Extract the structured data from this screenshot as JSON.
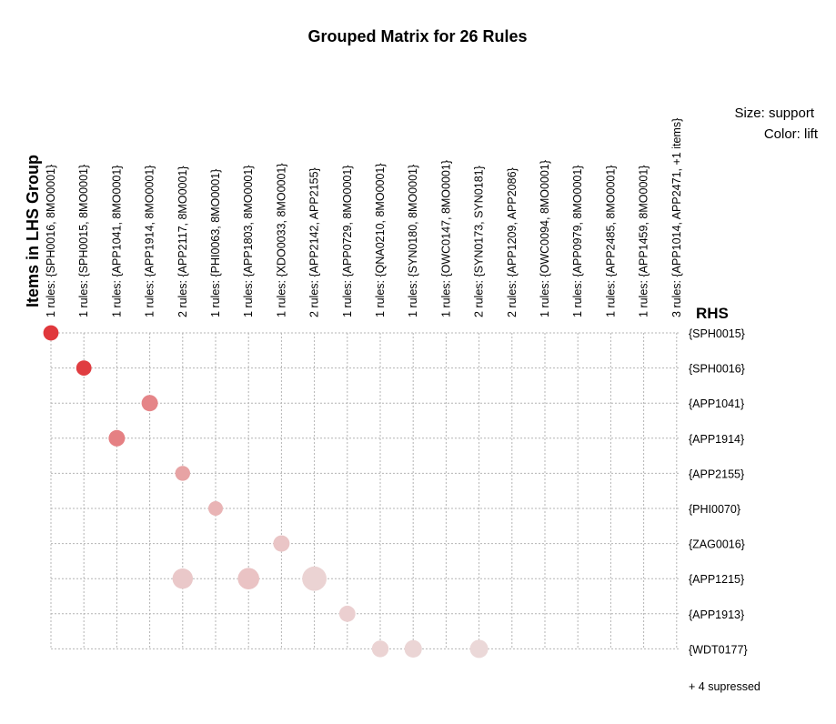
{
  "chart_data": {
    "type": "scatter",
    "title": "Grouped Matrix for 26 Rules",
    "legend": {
      "size_label": "Size: support",
      "color_label": "Color: lift",
      "placement": "top-right"
    },
    "x_axis_title": "Items in LHS Group",
    "y_axis_title": "RHS",
    "lhs_groups": [
      "1 rules: {SPH0016, 8MO0001}",
      "1 rules: {SPH0015, 8MO0001}",
      "1 rules: {APP1041, 8MO0001}",
      "1 rules: {APP1914, 8MO0001}",
      "2 rules: {APP2117, 8MO0001}",
      "1 rules: {PHI0063, 8MO0001}",
      "1 rules: {APP1803, 8MO0001}",
      "1 rules: {XDO0033, 8MO0001}",
      "2 rules: {APP2142, APP2155}",
      "1 rules: {APP0729, 8MO0001}",
      "1 rules: {QNA0210, 8MO0001}",
      "1 rules: {SYN0180, 8MO0001}",
      "1 rules: {OWC0147, 8MO0001}",
      "2 rules: {SYN0173, SYN0181}",
      "2 rules: {APP1209, APP2086}",
      "1 rules: {OWC0094, 8MO0001}",
      "1 rules: {APP0979, 8MO0001}",
      "1 rules: {APP2485, 8MO0001}",
      "1 rules: {APP1459, 8MO0001}",
      "3 rules: {APP1014, APP2471, +1 items}"
    ],
    "rhs_items": [
      "{SPH0015}",
      "{SPH0016}",
      "{APP1041}",
      "{APP1914}",
      "{APP2155}",
      "{PHI0070}",
      "{ZAG0016}",
      "{APP1215}",
      "{APP1913}",
      "{WDT0177}"
    ],
    "footer_note": "+ 4 supressed",
    "grid": true,
    "colors": {
      "high_lift": "#e0383c",
      "low_lift": "#ece4e4",
      "grid": "#b4b4b4"
    },
    "points": [
      {
        "lhs": 0,
        "rhs": 0,
        "support": 0.3,
        "lift": 1.0
      },
      {
        "lhs": 1,
        "rhs": 1,
        "support": 0.3,
        "lift": 0.97
      },
      {
        "lhs": 3,
        "rhs": 2,
        "support": 0.38,
        "lift": 0.55
      },
      {
        "lhs": 2,
        "rhs": 3,
        "support": 0.38,
        "lift": 0.58
      },
      {
        "lhs": 4,
        "rhs": 4,
        "support": 0.28,
        "lift": 0.38
      },
      {
        "lhs": 5,
        "rhs": 5,
        "support": 0.25,
        "lift": 0.28
      },
      {
        "lhs": 7,
        "rhs": 6,
        "support": 0.38,
        "lift": 0.18
      },
      {
        "lhs": 4,
        "rhs": 7,
        "support": 0.65,
        "lift": 0.16
      },
      {
        "lhs": 6,
        "rhs": 7,
        "support": 0.72,
        "lift": 0.19
      },
      {
        "lhs": 8,
        "rhs": 7,
        "support": 0.92,
        "lift": 0.1
      },
      {
        "lhs": 9,
        "rhs": 8,
        "support": 0.36,
        "lift": 0.12
      },
      {
        "lhs": 10,
        "rhs": 9,
        "support": 0.4,
        "lift": 0.1
      },
      {
        "lhs": 11,
        "rhs": 9,
        "support": 0.45,
        "lift": 0.09
      },
      {
        "lhs": 13,
        "rhs": 9,
        "support": 0.5,
        "lift": 0.07
      }
    ]
  }
}
